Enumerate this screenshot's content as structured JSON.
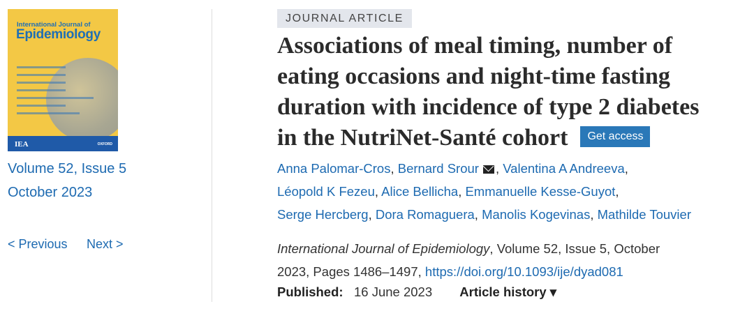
{
  "cover": {
    "journal_line1": "International Journal of",
    "journal_line2": "Epidemiology",
    "publisher_logo": "IEA",
    "oxford_logo": "OXFORD"
  },
  "issue": {
    "volume": "Volume 52, Issue 5",
    "date": "October 2023"
  },
  "nav": {
    "previous": "< Previous",
    "next": "Next >"
  },
  "article": {
    "type": "JOURNAL ARTICLE",
    "title_lines": [
      "Associations of meal timing, number of",
      "eating occasions and night-time fasting",
      "duration with incidence of type 2 diabetes",
      "in the NutriNet-Santé cohort"
    ],
    "get_access": "Get access",
    "authors": [
      "Anna Palomar-Cros",
      "Bernard Srour",
      "Valentina A Andreeva",
      "Léopold K Fezeu",
      "Alice Bellicha",
      "Emmanuelle Kesse-Guyot",
      "Serge Hercberg",
      "Dora Romaguera",
      "Manolis Kogevinas",
      "Mathilde Touvier"
    ],
    "journal": "International Journal of Epidemiology",
    "citation_rest1": ", Volume 52, Issue 5, October",
    "citation_rest2": "2023, Pages 1486–1497, ",
    "doi": "https://doi.org/10.1093/ije/dyad081",
    "published_label": "Published:",
    "published_date": "16 June 2023",
    "history": "Article history ▾"
  }
}
